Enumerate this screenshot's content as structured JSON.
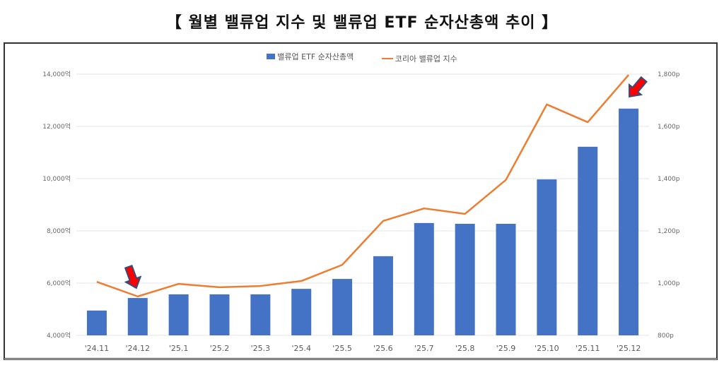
{
  "chart_data": {
    "type": "bar+line",
    "title": "【 월별 밸류업 지수 및 밸류업 ETF 순자산총액 추이 】",
    "categories": [
      "'24.11",
      "'24.12",
      "'25.1",
      "'25.2",
      "'25.3",
      "'25.4",
      "'25.5",
      "'25.6",
      "'25.7",
      "'25.8",
      "'25.9",
      "'25.10",
      "'25.11",
      "'25.12"
    ],
    "series": [
      {
        "name": "밸류업 ETF 순자산총액",
        "type": "bar",
        "axis": "left",
        "color": "#4472C4",
        "values": [
          4950,
          5430,
          5570,
          5570,
          5570,
          5780,
          6160,
          7030,
          8300,
          8270,
          8270,
          9970,
          11220,
          12680
        ]
      },
      {
        "name": "코리아 밸류업 지수",
        "type": "line",
        "axis": "right",
        "color": "#ED7D31",
        "values": [
          1005,
          949,
          997,
          984,
          989,
          1008,
          1070,
          1238,
          1286,
          1265,
          1395,
          1684,
          1616,
          1797
        ]
      }
    ],
    "left_axis": {
      "ylim": [
        4000,
        14000
      ],
      "ticks": [
        4000,
        6000,
        8000,
        10000,
        12000,
        14000
      ],
      "tick_labels": [
        "4,000억",
        "6,000억",
        "8,000억",
        "10,000억",
        "12,000억",
        "14,000억"
      ]
    },
    "right_axis": {
      "ylim": [
        800,
        1800
      ],
      "ticks": [
        800,
        1000,
        1200,
        1400,
        1600,
        1800
      ],
      "tick_labels": [
        "800p",
        "1,000p",
        "1,200p",
        "1,400p",
        "1,600p",
        "1,800p"
      ]
    },
    "grid": true,
    "legend": "top-center",
    "annotations": [
      {
        "type": "arrow",
        "target": "'24.12",
        "color": "#FF0000"
      },
      {
        "type": "arrow",
        "target": "'25.12",
        "color": "#FF0000"
      }
    ]
  }
}
